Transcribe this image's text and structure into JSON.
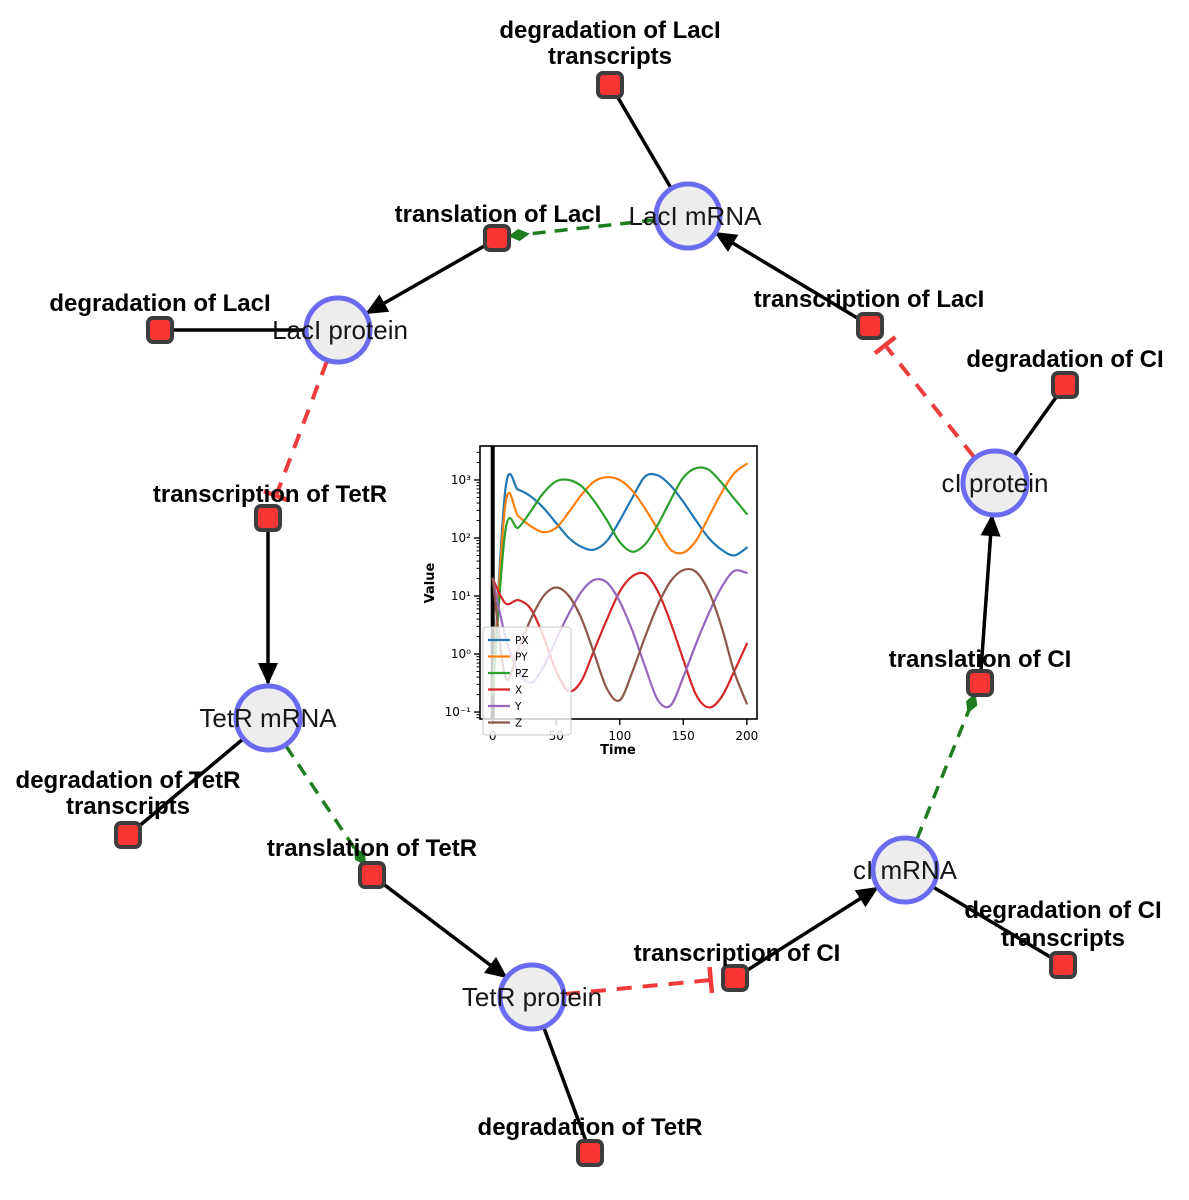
{
  "diagram": {
    "species": [
      {
        "label": "LacI mRNA"
      },
      {
        "label": "LacI protein"
      },
      {
        "label": "TetR mRNA"
      },
      {
        "label": "TetR protein"
      },
      {
        "label": "cI mRNA"
      },
      {
        "label": "cI protein"
      }
    ],
    "reactions": [
      {
        "lines": [
          "degradation of LacI",
          "transcripts"
        ]
      },
      {
        "lines": [
          "translation of LacI"
        ]
      },
      {
        "lines": [
          "degradation of LacI"
        ]
      },
      {
        "lines": [
          "transcription of LacI"
        ]
      },
      {
        "lines": [
          "degradation of CI"
        ]
      },
      {
        "lines": [
          "transcription of TetR"
        ]
      },
      {
        "lines": [
          "degradation of TetR",
          "transcripts"
        ]
      },
      {
        "lines": [
          "translation of TetR"
        ]
      },
      {
        "lines": [
          "degradation of TetR"
        ]
      },
      {
        "lines": [
          "transcription of CI"
        ]
      },
      {
        "lines": [
          "degradation of CI",
          "transcripts"
        ]
      },
      {
        "lines": [
          "translation of CI"
        ]
      }
    ],
    "edges": [
      {
        "source": "LacI mRNA",
        "target": "degradation of LacI transcripts",
        "type": "reactant"
      },
      {
        "source": "LacI mRNA",
        "target": "translation of LacI",
        "type": "modifier"
      },
      {
        "source": "translation of LacI",
        "target": "LacI protein",
        "type": "product"
      },
      {
        "source": "LacI protein",
        "target": "degradation of LacI",
        "type": "reactant"
      },
      {
        "source": "LacI protein",
        "target": "transcription of TetR",
        "type": "inhibition"
      },
      {
        "source": "transcription of TetR",
        "target": "TetR mRNA",
        "type": "product"
      },
      {
        "source": "TetR mRNA",
        "target": "degradation of TetR transcripts",
        "type": "reactant"
      },
      {
        "source": "TetR mRNA",
        "target": "translation of TetR",
        "type": "modifier"
      },
      {
        "source": "translation of TetR",
        "target": "TetR protein",
        "type": "product"
      },
      {
        "source": "TetR protein",
        "target": "degradation of TetR",
        "type": "reactant"
      },
      {
        "source": "TetR protein",
        "target": "transcription of CI",
        "type": "inhibition"
      },
      {
        "source": "transcription of CI",
        "target": "cI mRNA",
        "type": "product"
      },
      {
        "source": "cI mRNA",
        "target": "degradation of CI transcripts",
        "type": "reactant"
      },
      {
        "source": "cI mRNA",
        "target": "translation of CI",
        "type": "modifier"
      },
      {
        "source": "translation of CI",
        "target": "cI protein",
        "type": "product"
      },
      {
        "source": "cI protein",
        "target": "degradation of CI",
        "type": "reactant"
      },
      {
        "source": "cI protein",
        "target": "transcription of LacI",
        "type": "inhibition"
      },
      {
        "source": "transcription of LacI",
        "target": "LacI mRNA",
        "type": "product"
      }
    ],
    "colors": {
      "species_fill": "#ededed",
      "species_border": "#6b6bf2",
      "reaction_fill": "#f93535",
      "reaction_border": "#3d3d3d",
      "edge_solid": "#000000",
      "edge_inhibition": "#ef3b3b",
      "edge_modifier": "#1e7d1e"
    }
  },
  "chart_data": {
    "type": "line",
    "xlabel": "Time",
    "ylabel": "Value",
    "y_scale": "log",
    "xlim": [
      -10,
      208
    ],
    "ylim_log": [
      -1.12,
      3.586
    ],
    "x_ticks": [
      0,
      50,
      100,
      150,
      200
    ],
    "y_ticks": [
      {
        "value": 1000,
        "label": "10³"
      },
      {
        "value": 100,
        "label": "10²"
      },
      {
        "value": 10,
        "label": "10¹"
      },
      {
        "value": 1,
        "label": "10⁰"
      },
      {
        "value": 0.1,
        "label": "10⁻¹"
      }
    ],
    "legend_position": "lower left",
    "annotations": [
      {
        "type": "vline",
        "x": 0,
        "color": "#000000",
        "width": 4
      }
    ],
    "x": [
      0,
      10,
      20,
      30,
      40,
      50,
      60,
      70,
      80,
      90,
      100,
      110,
      120,
      130,
      140,
      150,
      160,
      170,
      180,
      190,
      200
    ],
    "series": [
      {
        "name": "PX",
        "color": "#1f77b4",
        "values": [
          0.2,
          690,
          680,
          520,
          330,
          180,
          100,
          70,
          63,
          90,
          200,
          500,
          1150,
          1200,
          800,
          420,
          200,
          100,
          63,
          50,
          68
        ]
      },
      {
        "name": "PY",
        "color": "#ff7f0e",
        "values": [
          0.2,
          380,
          240,
          160,
          126,
          150,
          280,
          560,
          950,
          1120,
          1000,
          650,
          320,
          140,
          63,
          56,
          90,
          230,
          600,
          1300,
          1900
        ]
      },
      {
        "name": "PZ",
        "color": "#2ca02c",
        "values": [
          0.2,
          135,
          150,
          290,
          600,
          950,
          1000,
          780,
          430,
          200,
          85,
          58,
          78,
          170,
          450,
          1100,
          1600,
          1500,
          900,
          480,
          260
        ]
      },
      {
        "name": "X",
        "color": "#d62728",
        "values": [
          20,
          7.5,
          8.5,
          6,
          2,
          0.5,
          0.23,
          0.35,
          1.2,
          4,
          12,
          22,
          24,
          12,
          3.5,
          0.8,
          0.2,
          0.12,
          0.18,
          0.5,
          1.5
        ]
      },
      {
        "name": "Y",
        "color": "#9467bd",
        "values": [
          20,
          2,
          0.5,
          0.32,
          0.6,
          1.8,
          5,
          12,
          19,
          17,
          8,
          2.5,
          0.6,
          0.16,
          0.13,
          0.4,
          1.5,
          5,
          14,
          27,
          25
        ]
      },
      {
        "name": "Z",
        "color": "#8c564b",
        "values": [
          20,
          0.4,
          1.2,
          4,
          10,
          14,
          10,
          4,
          1,
          0.25,
          0.16,
          0.5,
          2,
          7,
          18,
          28,
          26,
          12,
          3,
          0.5,
          0.14
        ]
      }
    ]
  }
}
